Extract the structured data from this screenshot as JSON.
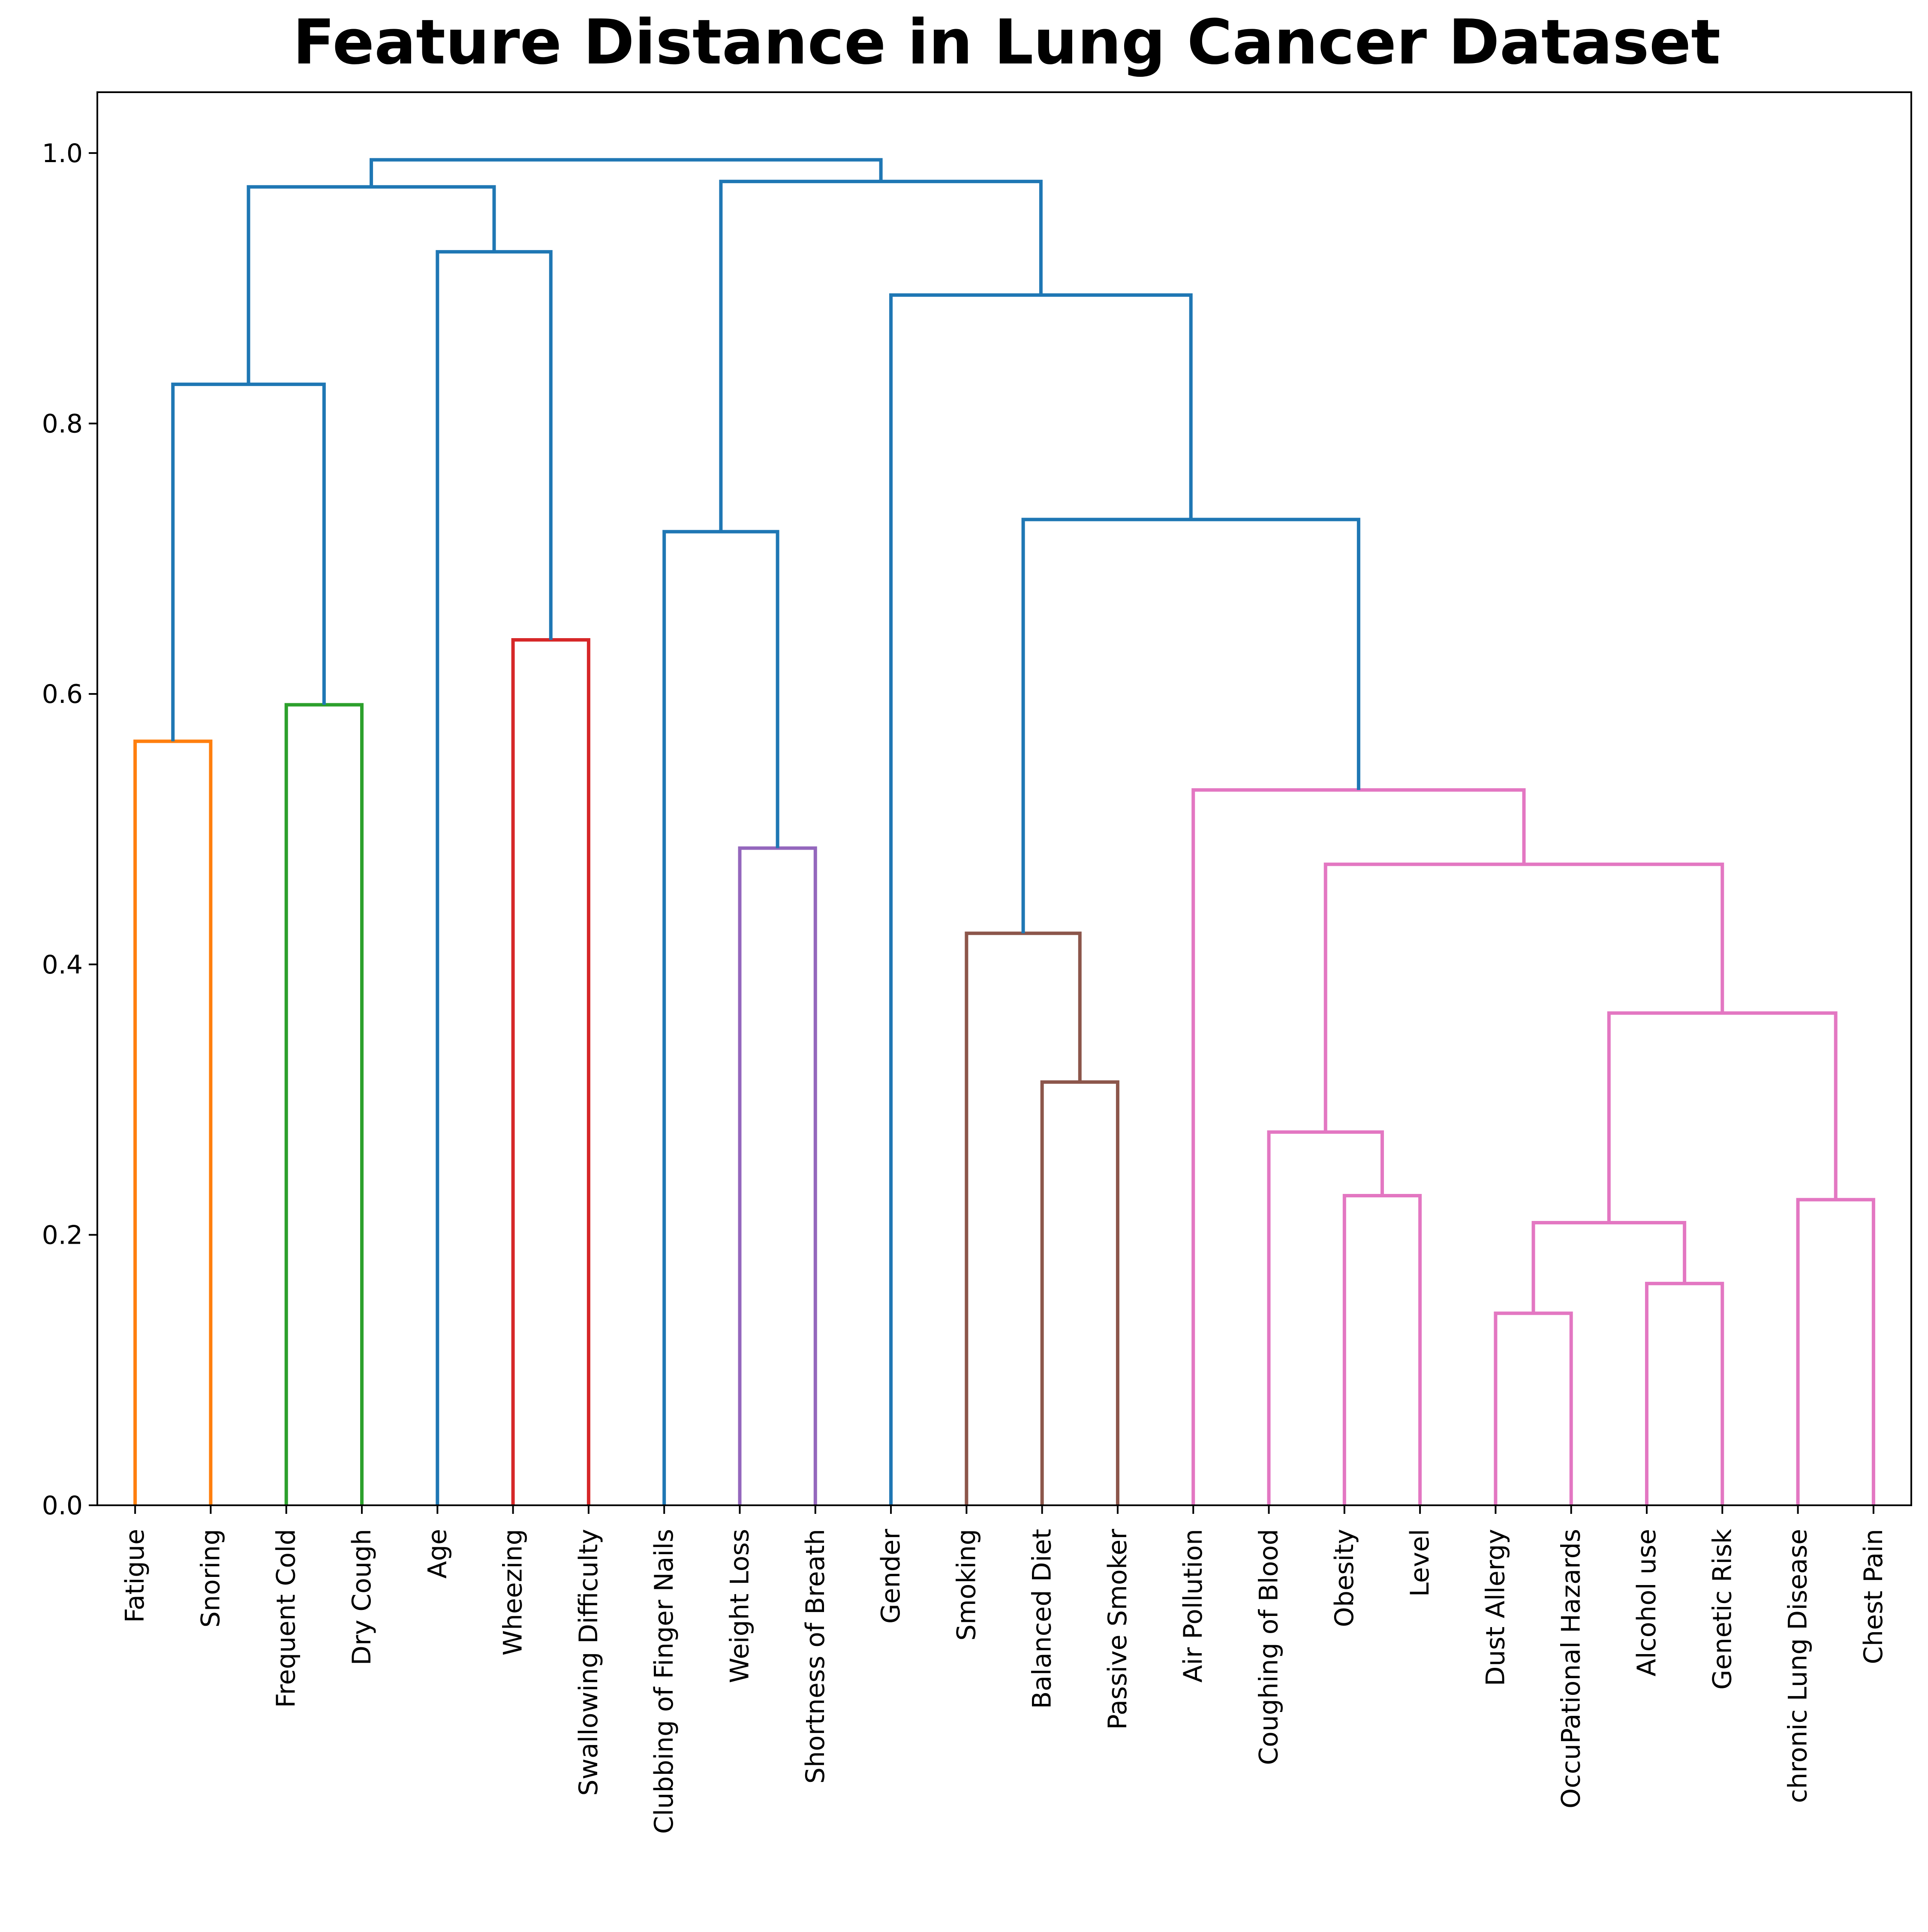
{
  "chart_data": {
    "type": "dendrogram",
    "title": "Feature Distance in Lung Cancer Dataset",
    "xlabel": "",
    "ylabel": "",
    "ylim": [
      0,
      1.045
    ],
    "yticks": [
      0.0,
      0.2,
      0.4,
      0.6,
      0.8,
      1.0
    ],
    "ytick_labels": [
      "0.0",
      "0.2",
      "0.4",
      "0.6",
      "0.8",
      "1.0"
    ],
    "grid": false,
    "leaves": [
      "Fatigue",
      "Snoring",
      "Frequent Cold",
      "Dry Cough",
      "Age",
      "Wheezing",
      "Swallowing Difficulty",
      "Clubbing of Finger Nails",
      "Weight Loss",
      "Shortness of Breath",
      "Gender",
      "Smoking",
      "Balanced Diet",
      "Passive Smoker",
      "Air Pollution",
      "Coughing of Blood",
      "Obesity",
      "Level",
      "Dust Allergy",
      "OccuPational Hazards",
      "Alcohol use",
      "Genetic Risk",
      "chronic Lung Disease",
      "Chest Pain"
    ],
    "colors": {
      "orange": "#ff7f0e",
      "green": "#2ca02c",
      "red": "#d62728",
      "purple": "#9467bd",
      "brown": "#8c564b",
      "pink": "#e377c2",
      "blue": "#1f77b4"
    },
    "merges": [
      {
        "id": "c1",
        "left": "Fatigue",
        "right": "Snoring",
        "height": 0.565,
        "color": "orange"
      },
      {
        "id": "c2",
        "left": "Frequent Cold",
        "right": "Dry Cough",
        "height": 0.592,
        "color": "green"
      },
      {
        "id": "c3",
        "left": "Wheezing",
        "right": "Swallowing Difficulty",
        "height": 0.64,
        "color": "red"
      },
      {
        "id": "c4",
        "left": "Weight Loss",
        "right": "Shortness of Breath",
        "height": 0.486,
        "color": "purple"
      },
      {
        "id": "c5",
        "left": "Balanced Diet",
        "right": "Passive Smoker",
        "height": 0.313,
        "color": "brown"
      },
      {
        "id": "c6",
        "left": "Smoking",
        "right": "c5",
        "height": 0.423,
        "color": "brown"
      },
      {
        "id": "c7",
        "left": "Obesity",
        "right": "Level",
        "height": 0.229,
        "color": "pink"
      },
      {
        "id": "c8",
        "left": "Coughing of Blood",
        "right": "c7",
        "height": 0.276,
        "color": "pink"
      },
      {
        "id": "c9",
        "left": "Dust Allergy",
        "right": "OccuPational Hazards",
        "height": 0.142,
        "color": "pink"
      },
      {
        "id": "c10",
        "left": "Alcohol use",
        "right": "Genetic Risk",
        "height": 0.164,
        "color": "pink"
      },
      {
        "id": "c11",
        "left": "c9",
        "right": "c10",
        "height": 0.209,
        "color": "pink"
      },
      {
        "id": "c12",
        "left": "chronic Lung Disease",
        "right": "Chest Pain",
        "height": 0.226,
        "color": "pink"
      },
      {
        "id": "c13",
        "left": "c11",
        "right": "c12",
        "height": 0.364,
        "color": "pink"
      },
      {
        "id": "c14",
        "left": "c8",
        "right": "c13",
        "height": 0.474,
        "color": "pink"
      },
      {
        "id": "c15",
        "left": "Air Pollution",
        "right": "c14",
        "height": 0.529,
        "color": "pink"
      },
      {
        "id": "c16",
        "left": "c6",
        "right": "c15",
        "height": 0.729,
        "color": "blue"
      },
      {
        "id": "c17",
        "left": "Gender",
        "right": "c16",
        "height": 0.895,
        "color": "blue"
      },
      {
        "id": "c18",
        "left": "Clubbing of Finger Nails",
        "right": "c4",
        "height": 0.72,
        "color": "blue"
      },
      {
        "id": "c19",
        "left": "c18",
        "right": "c17",
        "height": 0.979,
        "color": "blue"
      },
      {
        "id": "c20",
        "left": "c1",
        "right": "c2",
        "height": 0.829,
        "color": "blue"
      },
      {
        "id": "c21",
        "left": "Age",
        "right": "c3",
        "height": 0.927,
        "color": "blue"
      },
      {
        "id": "c22",
        "left": "c20",
        "right": "c21",
        "height": 0.975,
        "color": "blue"
      },
      {
        "id": "c23",
        "left": "c22",
        "right": "c19",
        "height": 0.995,
        "color": "blue"
      }
    ]
  }
}
